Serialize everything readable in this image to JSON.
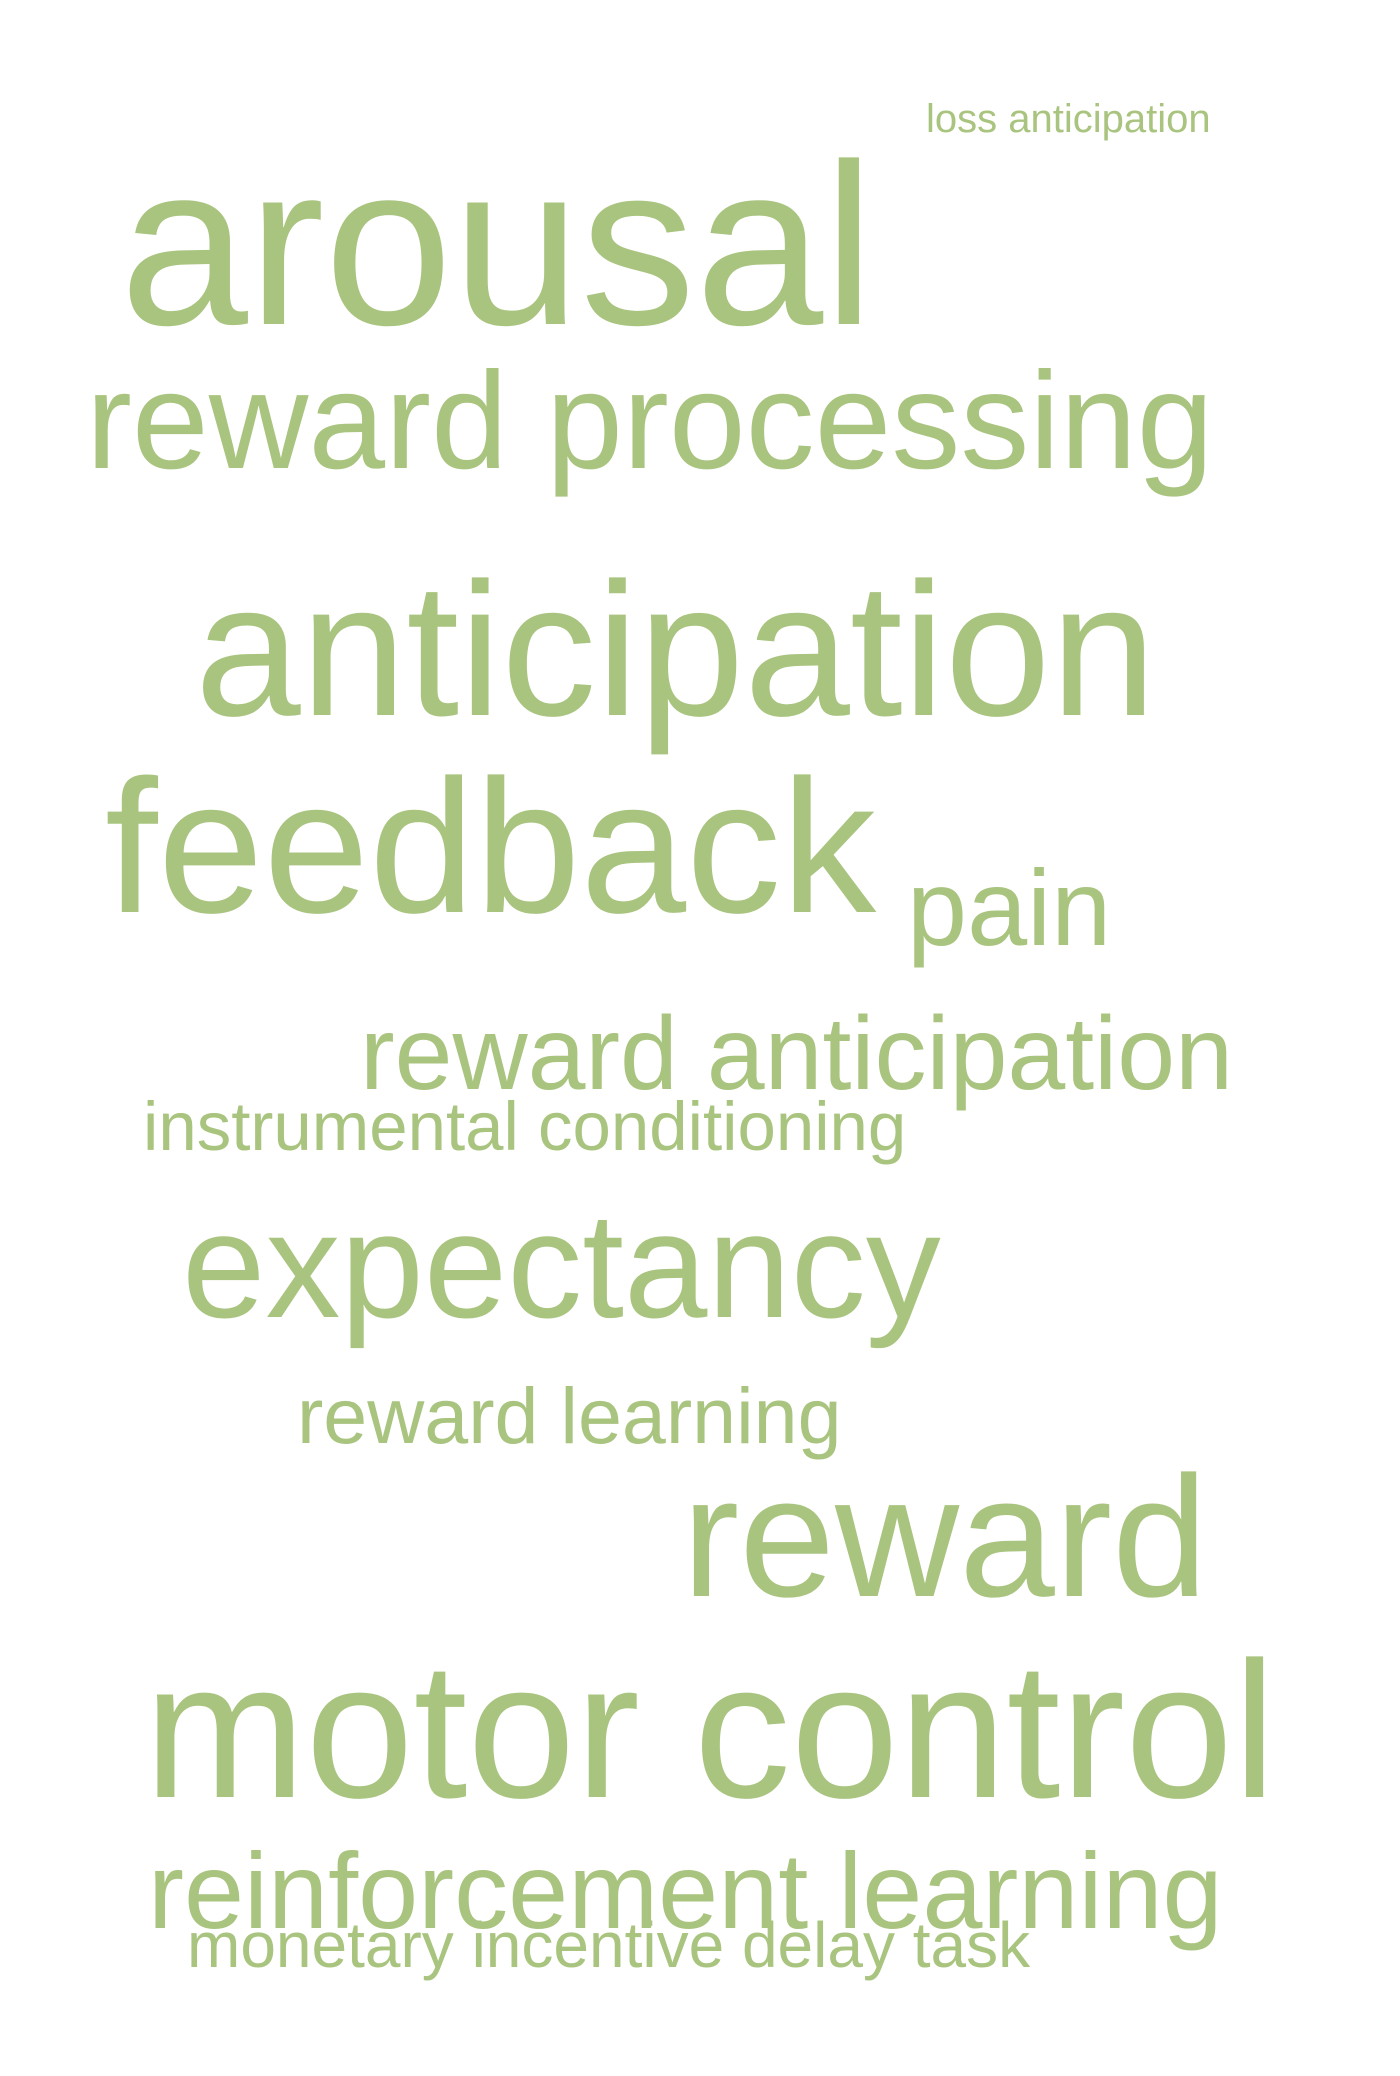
{
  "colors": {
    "word": "#a9c47f",
    "background": "#ffffff"
  },
  "words": [
    {
      "id": "w-loss-anticipation",
      "text": "loss anticipation"
    },
    {
      "id": "w-arousal",
      "text": "arousal"
    },
    {
      "id": "w-reward-processing",
      "text": "reward processing"
    },
    {
      "id": "w-anticipation",
      "text": "anticipation"
    },
    {
      "id": "w-feedback",
      "text": "feedback"
    },
    {
      "id": "w-pain",
      "text": "pain"
    },
    {
      "id": "w-reward-anticipation",
      "text": "reward anticipation"
    },
    {
      "id": "w-instrumental-conditioning",
      "text": "instrumental conditioning"
    },
    {
      "id": "w-expectancy",
      "text": "expectancy"
    },
    {
      "id": "w-reward-learning",
      "text": "reward learning"
    },
    {
      "id": "w-reward",
      "text": "reward"
    },
    {
      "id": "w-motor-control",
      "text": "motor control"
    },
    {
      "id": "w-reinforcement-learning",
      "text": "reinforcement learning"
    },
    {
      "id": "w-monetary-incentive-delay-task",
      "text": "monetary incentive delay task"
    }
  ]
}
